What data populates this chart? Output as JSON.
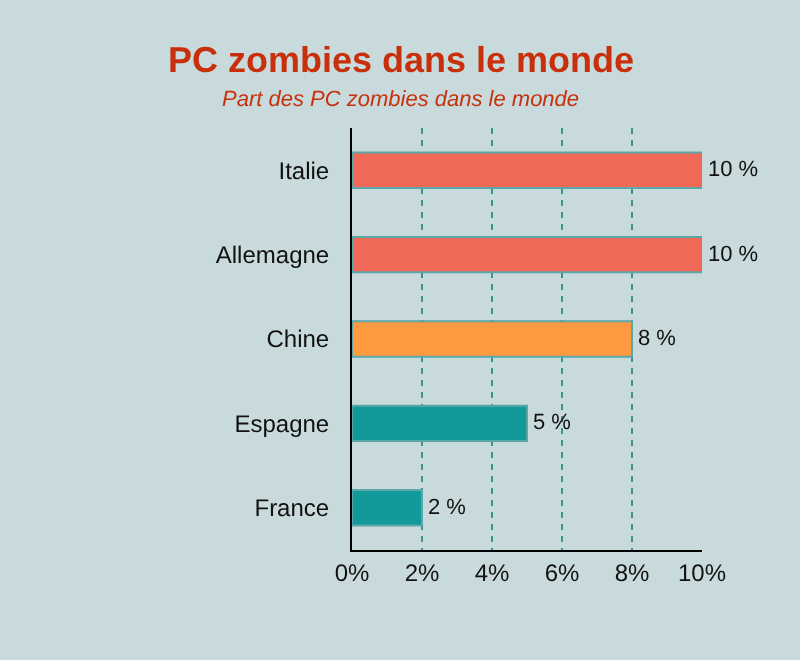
{
  "chart_data": {
    "type": "bar",
    "orientation": "horizontal",
    "title": "PC zombies dans le monde",
    "subtitle": "Part des PC zombies dans le monde",
    "categories": [
      "Italie",
      "Allemagne",
      "Chine",
      "Espagne",
      "France"
    ],
    "values": [
      10,
      10,
      8,
      5,
      2
    ],
    "colors": [
      "#f06858",
      "#f06858",
      "#ff9a40",
      "#12999a",
      "#12999a"
    ],
    "value_labels": [
      "10 %",
      "10 %",
      "8 %",
      "5 %",
      "2 %"
    ],
    "xlim": [
      0,
      10
    ],
    "xticks": [
      {
        "value": 0,
        "label": "0%"
      },
      {
        "value": 2,
        "label": "2%"
      },
      {
        "value": 4,
        "label": "4%"
      },
      {
        "value": 6,
        "label": "6%"
      },
      {
        "value": 8,
        "label": "8%"
      },
      {
        "value": 10,
        "label": "10%"
      }
    ],
    "grid": "x"
  }
}
